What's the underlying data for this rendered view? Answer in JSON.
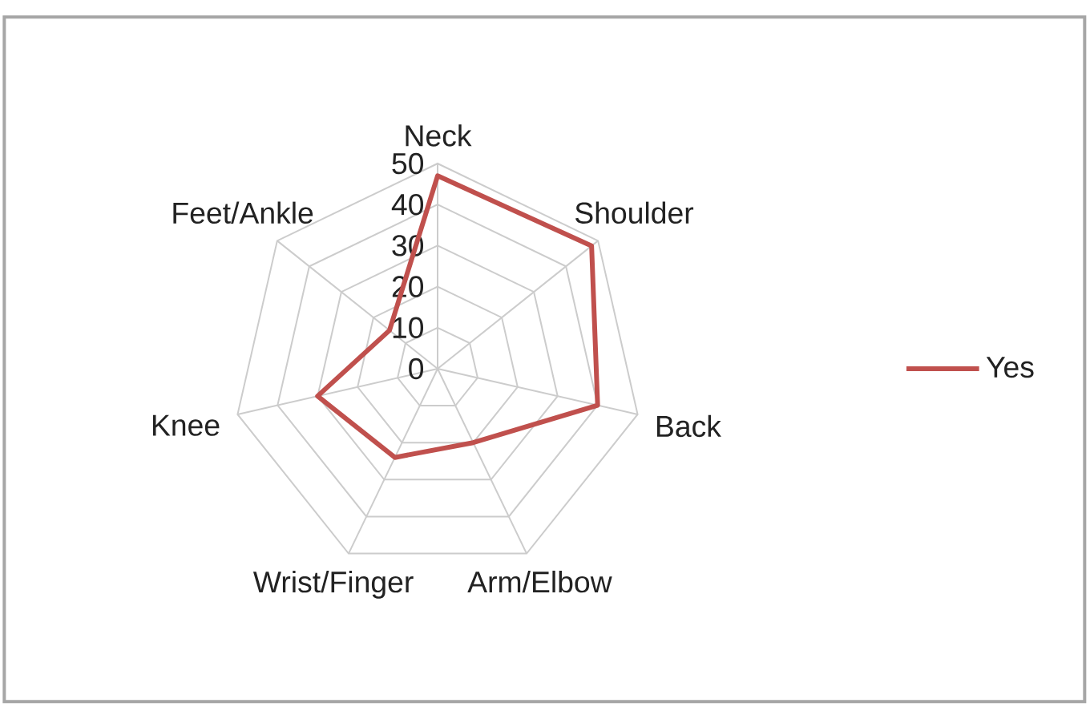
{
  "chart_data": {
    "type": "radar",
    "categories": [
      "Neck",
      "Shoulder",
      "Back",
      "Arm/Elbow",
      "Wrist/Finger",
      "Knee",
      "Feet/Ankle"
    ],
    "series": [
      {
        "name": "Yes",
        "color": "#c0504d",
        "values": [
          47,
          48,
          40,
          20,
          24,
          30,
          15
        ]
      }
    ],
    "ylim": [
      0,
      50
    ],
    "yticks": [
      0,
      10,
      20,
      30,
      40,
      50
    ],
    "grid": true,
    "legend": "right"
  }
}
